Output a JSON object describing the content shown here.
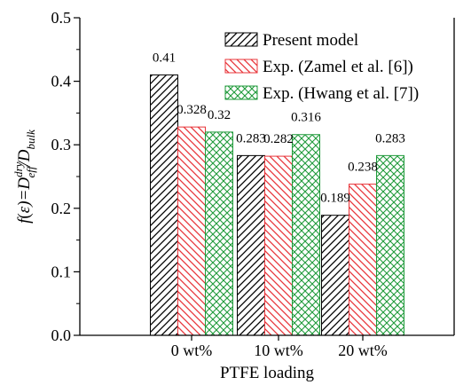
{
  "chart_data": {
    "type": "bar",
    "title": "",
    "xlabel": "PTFE loading",
    "ylabel_parts": {
      "f": "f",
      "open_paren": "(",
      "epsilon": "ε",
      "close_eq": ")=D",
      "dry_sup": "dry",
      "eff_sub": "eff",
      "slash": "/D",
      "bulk_sub": "bulk"
    },
    "categories": [
      "0 wt%",
      "10 wt%",
      "20 wt%"
    ],
    "ylim": [
      0,
      0.5
    ],
    "y_ticks": [
      "0.0",
      "0.1",
      "0.2",
      "0.3",
      "0.4",
      "0.5"
    ],
    "grid": false,
    "legend_position": "top-right",
    "series": [
      {
        "name": "Present model",
        "values": [
          0.41,
          0.283,
          0.189
        ],
        "labels": [
          "0.41",
          "0.283",
          "0.189"
        ],
        "fill_color": "#000000",
        "pattern": "diagonal-right"
      },
      {
        "name": "Exp. (Zamel et al. [6])",
        "values": [
          0.328,
          0.282,
          0.238
        ],
        "labels": [
          "0.328",
          "0.282",
          "0.238"
        ],
        "fill_color": "#e8353a",
        "pattern": "diagonal-left"
      },
      {
        "name": "Exp. (Hwang et al. [7])",
        "values": [
          0.32,
          0.316,
          0.283
        ],
        "labels": [
          "0.32",
          "0.316",
          "0.283"
        ],
        "fill_color": "#1f9a3a",
        "pattern": "crosshatch"
      }
    ]
  }
}
